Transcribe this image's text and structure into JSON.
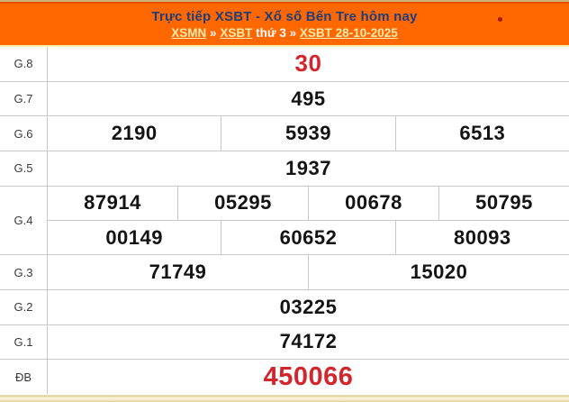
{
  "header": {
    "title": "Trực tiếp XSBT - Xổ số Bến Tre hôm nay",
    "breadcrumb": {
      "link_xsmn": "XSMN",
      "sep1": "»",
      "link_xsbt": "XSBT",
      "weekday": "thứ 3",
      "sep2": "»",
      "link_date": "XSBT 28-10-2025"
    }
  },
  "results": {
    "rows": [
      {
        "label": "G.8",
        "values": [
          "30"
        ]
      },
      {
        "label": "G.7",
        "values": [
          "495"
        ]
      },
      {
        "label": "G.6",
        "values": [
          "2190",
          "5939",
          "6513"
        ]
      },
      {
        "label": "G.5",
        "values": [
          "1937"
        ]
      },
      {
        "label": "G.4",
        "lines": [
          [
            "87914",
            "05295",
            "00678",
            "50795"
          ],
          [
            "00149",
            "60652",
            "80093"
          ]
        ]
      },
      {
        "label": "G.3",
        "values": [
          "71749",
          "15020"
        ]
      },
      {
        "label": "G.2",
        "values": [
          "03225"
        ]
      },
      {
        "label": "G.1",
        "values": [
          "74172"
        ]
      },
      {
        "label": "ĐB",
        "values": [
          "450066"
        ]
      }
    ]
  },
  "colors": {
    "banner_orange": "#FF6701",
    "banner_top_tan": "#CBB178",
    "banner_top_dark": "#E25301",
    "title_navy": "#1D3E7E",
    "link_yellow": "#FFEBAE",
    "highlight_red": "#D2262C",
    "grid_gray": "#C9C9C9",
    "bottom_band_gold": "#D9C48C"
  }
}
